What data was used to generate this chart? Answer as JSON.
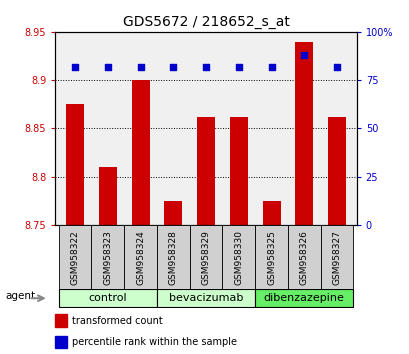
{
  "title": "GDS5672 / 218652_s_at",
  "samples": [
    "GSM958322",
    "GSM958323",
    "GSM958324",
    "GSM958328",
    "GSM958329",
    "GSM958330",
    "GSM958325",
    "GSM958326",
    "GSM958327"
  ],
  "bar_values": [
    8.875,
    8.81,
    8.9,
    8.775,
    8.862,
    8.862,
    8.775,
    8.94,
    8.862
  ],
  "percentile_values": [
    82,
    82,
    82,
    82,
    82,
    82,
    82,
    88,
    82
  ],
  "ylim_left": [
    8.75,
    8.95
  ],
  "ylim_right": [
    0,
    100
  ],
  "yticks_left": [
    8.75,
    8.8,
    8.85,
    8.9,
    8.95
  ],
  "yticks_right": [
    0,
    25,
    50,
    75,
    100
  ],
  "bar_color": "#cc0000",
  "dot_color": "#0000cc",
  "groups": [
    {
      "label": "control",
      "indices": [
        0,
        1,
        2
      ],
      "color": "#ccffcc"
    },
    {
      "label": "bevacizumab",
      "indices": [
        3,
        4,
        5
      ],
      "color": "#ccffcc"
    },
    {
      "label": "dibenzazepine",
      "indices": [
        6,
        7,
        8
      ],
      "color": "#66ee66"
    }
  ],
  "legend_items": [
    {
      "label": "transformed count",
      "color": "#cc0000"
    },
    {
      "label": "percentile rank within the sample",
      "color": "#0000cc"
    }
  ],
  "agent_label": "agent",
  "plot_bg_color": "#f0f0f0",
  "label_bg_color": "#d0d0d0",
  "background_color": "#ffffff",
  "title_fontsize": 10,
  "tick_label_fontsize": 7,
  "sample_fontsize": 6.5,
  "group_fontsize": 8,
  "legend_fontsize": 7
}
